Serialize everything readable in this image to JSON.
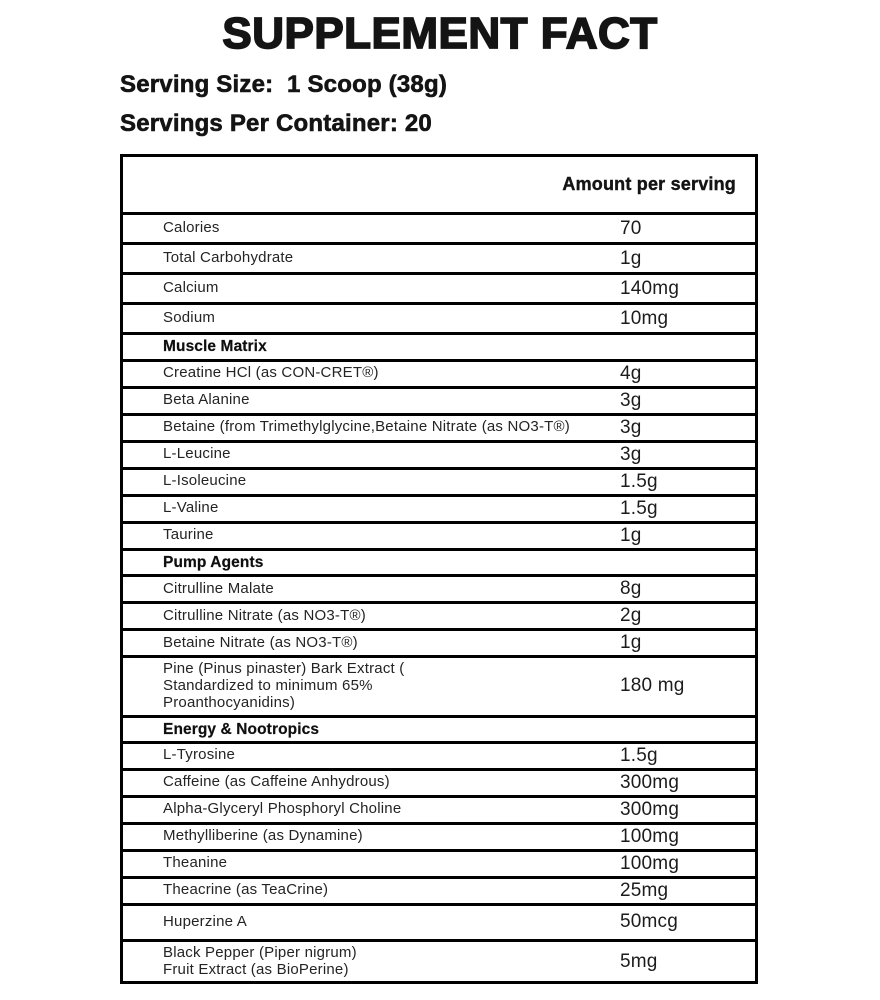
{
  "title": "SUPPLEMENT FACT",
  "serving": {
    "size_line": "Serving Size:  1 Scoop (38g)",
    "per_container_line": "Servings Per Container: 20"
  },
  "table": {
    "amount_header": "Amount per serving",
    "rows": [
      {
        "label": "Calories",
        "amount": "70"
      },
      {
        "label": "Total Carbohydrate",
        "amount": "1g"
      },
      {
        "label": "Calcium",
        "amount": "140mg"
      },
      {
        "label": "Sodium",
        "amount": "10mg"
      },
      {
        "label": "Muscle Matrix",
        "type": "section",
        "amount": ""
      },
      {
        "label": "Creatine HCl (as CON-CRET®)",
        "amount": "4g"
      },
      {
        "label": "Beta Alanine",
        "amount": "3g"
      },
      {
        "label": "Betaine (from Trimethylglycine,Betaine Nitrate (as NO3-T®)",
        "amount": "3g"
      },
      {
        "label": "L-Leucine",
        "amount": "3g"
      },
      {
        "label": "L-Isoleucine",
        "amount": "1.5g"
      },
      {
        "label": "L-Valine",
        "amount": "1.5g"
      },
      {
        "label": "Taurine",
        "amount": "1g"
      },
      {
        "label": "Pump Agents",
        "type": "section",
        "amount": ""
      },
      {
        "label": "Citrulline Malate",
        "amount": "8g"
      },
      {
        "label": "Citrulline Nitrate (as NO3-T®)",
        "amount": "2g"
      },
      {
        "label": "Betaine Nitrate (as NO3-T®)",
        "amount": "1g"
      },
      {
        "label": "Pine (Pinus pinaster) Bark Extract (\nStandardized to minimum 65%\nProanthocyanidins)",
        "amount": "180 mg",
        "tall": true
      },
      {
        "label": "Energy & Nootropics",
        "type": "section",
        "amount": ""
      },
      {
        "label": "L-Tyrosine",
        "amount": "1.5g"
      },
      {
        "label": "Caffeine (as Caffeine Anhydrous)",
        "amount": "300mg"
      },
      {
        "label": "Alpha-Glyceryl Phosphoryl Choline",
        "amount": "300mg"
      },
      {
        "label": "Methylliberine (as Dynamine)",
        "amount": "100mg"
      },
      {
        "label": "Theanine",
        "amount": "100mg"
      },
      {
        "label": "Theacrine (as TeaCrine)",
        "amount": "25mg"
      },
      {
        "label": "Huperzine A",
        "amount": "50mcg",
        "tall": true
      },
      {
        "label": "Black Pepper (Piper nigrum)\nFruit Extract (as BioPerine)",
        "amount": "5mg",
        "tall": true
      }
    ]
  },
  "colors": {
    "background": "#ffffff",
    "text": "#141414",
    "border": "#000000"
  }
}
